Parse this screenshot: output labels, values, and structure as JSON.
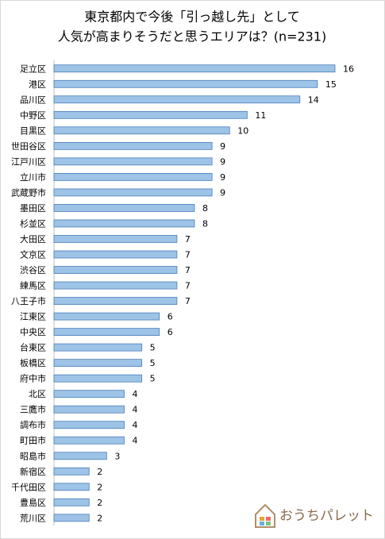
{
  "chart_data": {
    "type": "bar",
    "orientation": "horizontal",
    "title": [
      "東京都内で今後「引っ越し先」として",
      "人気が高まりそうだと思うエリアは？(n=231)"
    ],
    "categories": [
      "足立区",
      "港区",
      "品川区",
      "中野区",
      "目黒区",
      "世田谷区",
      "江戸川区",
      "立川市",
      "武蔵野市",
      "墨田区",
      "杉並区",
      "大田区",
      "文京区",
      "渋谷区",
      "練馬区",
      "八王子市",
      "江東区",
      "中央区",
      "台東区",
      "板橋区",
      "府中市",
      "北区",
      "三鷹市",
      "調布市",
      "町田市",
      "昭島市",
      "新宿区",
      "千代田区",
      "豊島区",
      "荒川区"
    ],
    "values": [
      16,
      15,
      14,
      11,
      10,
      9,
      9,
      9,
      9,
      8,
      8,
      7,
      7,
      7,
      7,
      7,
      6,
      6,
      5,
      5,
      5,
      4,
      4,
      4,
      4,
      3,
      2,
      2,
      2,
      2
    ],
    "color": "#9dc3e6",
    "xlim": [
      0,
      16
    ]
  },
  "logo": {
    "text": "おうちパレット"
  }
}
